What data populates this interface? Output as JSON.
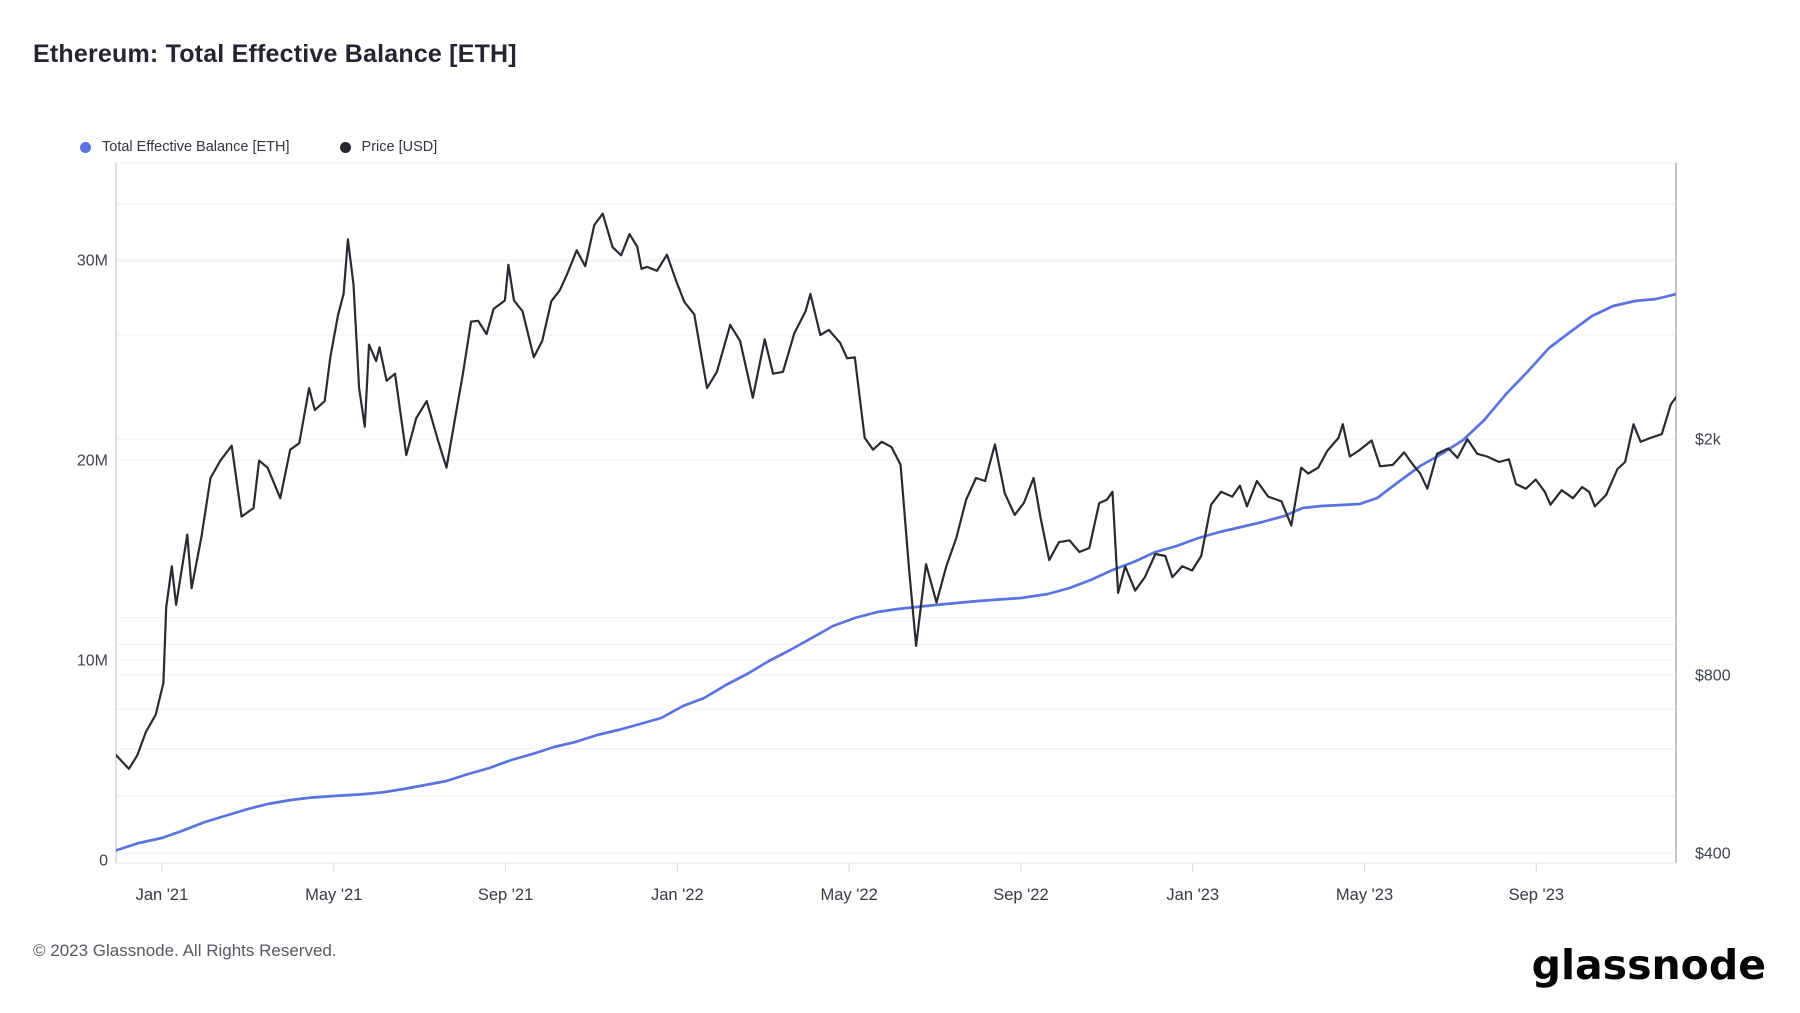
{
  "page": {
    "title": "Ethereum: Total Effective Balance [ETH]"
  },
  "legend": [
    {
      "label": "Total Effective Balance [ETH]",
      "color": "#5a73e0"
    },
    {
      "label": "Price [USD]",
      "color": "#26272c"
    }
  ],
  "footer": {
    "copyright": "© 2023 Glassnode. All Rights Reserved.",
    "brand": "glassnode"
  },
  "chart_data": {
    "type": "line",
    "title": "Ethereum: Total Effective Balance [ETH]",
    "grid": "horizontal-only",
    "legend_position": "top-left",
    "x_axis": {
      "type": "time",
      "start": "2020-11-28",
      "end": "2023-12-11",
      "ticks": [
        {
          "date": "2021-01-01",
          "label": "Jan '21"
        },
        {
          "date": "2021-05-01",
          "label": "May '21"
        },
        {
          "date": "2021-09-01",
          "label": "Sep '21"
        },
        {
          "date": "2022-01-01",
          "label": "Jan '22"
        },
        {
          "date": "2022-05-01",
          "label": "May '22"
        },
        {
          "date": "2022-09-01",
          "label": "Sep '22"
        },
        {
          "date": "2023-01-01",
          "label": "Jan '23"
        },
        {
          "date": "2023-05-01",
          "label": "May '23"
        },
        {
          "date": "2023-09-01",
          "label": "Sep '23"
        }
      ]
    },
    "y_axis_left": {
      "label": "Total Effective Balance [ETH]",
      "scale": "linear",
      "unit": "ETH",
      "range_m_eth": [
        0,
        35
      ],
      "ticks": [
        {
          "value": 0,
          "label": "0"
        },
        {
          "value": 10,
          "label": "10M"
        },
        {
          "value": 20,
          "label": "20M"
        },
        {
          "value": 30,
          "label": "30M"
        }
      ],
      "gridline_values": [
        10,
        20,
        30
      ]
    },
    "y_axis_right": {
      "label": "Price [USD]",
      "scale": "log",
      "unit": "USD",
      "ticks": [
        {
          "value": 400,
          "label": "$400"
        },
        {
          "value": 800,
          "label": "$800"
        },
        {
          "value": 2000,
          "label": "$2k"
        }
      ],
      "gridline_values": [
        400,
        500,
        600,
        700,
        800,
        900,
        1000,
        2000,
        3000,
        4000,
        5000
      ]
    },
    "series": [
      {
        "name": "Total Effective Balance [ETH]",
        "axis": "left",
        "color": "#5a73e0",
        "unit": "M ETH",
        "points": [
          [
            "2020-11-28",
            0.45
          ],
          [
            "2020-12-15",
            0.85
          ],
          [
            "2021-01-01",
            1.1
          ],
          [
            "2021-01-15",
            1.45
          ],
          [
            "2021-02-01",
            1.9
          ],
          [
            "2021-02-15",
            2.2
          ],
          [
            "2021-03-01",
            2.55
          ],
          [
            "2021-03-15",
            2.8
          ],
          [
            "2021-04-01",
            3.0
          ],
          [
            "2021-04-15",
            3.12
          ],
          [
            "2021-05-01",
            3.2
          ],
          [
            "2021-05-20",
            3.28
          ],
          [
            "2021-06-05",
            3.38
          ],
          [
            "2021-06-20",
            3.55
          ],
          [
            "2021-07-05",
            3.75
          ],
          [
            "2021-07-20",
            3.95
          ],
          [
            "2021-08-05",
            4.3
          ],
          [
            "2021-08-20",
            4.6
          ],
          [
            "2021-09-05",
            5.0
          ],
          [
            "2021-09-20",
            5.3
          ],
          [
            "2021-10-05",
            5.65
          ],
          [
            "2021-10-20",
            5.9
          ],
          [
            "2021-11-05",
            6.25
          ],
          [
            "2021-11-20",
            6.5
          ],
          [
            "2021-12-05",
            6.8
          ],
          [
            "2021-12-20",
            7.1
          ],
          [
            "2022-01-05",
            7.7
          ],
          [
            "2022-01-20",
            8.1
          ],
          [
            "2022-02-05",
            8.75
          ],
          [
            "2022-02-20",
            9.3
          ],
          [
            "2022-03-05",
            9.95
          ],
          [
            "2022-03-20",
            10.5
          ],
          [
            "2022-04-05",
            11.1
          ],
          [
            "2022-04-20",
            11.7
          ],
          [
            "2022-05-05",
            12.1
          ],
          [
            "2022-05-21",
            12.4
          ],
          [
            "2022-06-05",
            12.55
          ],
          [
            "2022-07-01",
            12.75
          ],
          [
            "2022-08-01",
            12.95
          ],
          [
            "2022-09-01",
            13.1
          ],
          [
            "2022-09-20",
            13.3
          ],
          [
            "2022-10-05",
            13.6
          ],
          [
            "2022-10-20",
            14.0
          ],
          [
            "2022-11-05",
            14.5
          ],
          [
            "2022-11-20",
            14.9
          ],
          [
            "2022-12-05",
            15.4
          ],
          [
            "2022-12-20",
            15.7
          ],
          [
            "2023-01-05",
            16.1
          ],
          [
            "2023-01-20",
            16.4
          ],
          [
            "2023-02-05",
            16.65
          ],
          [
            "2023-02-20",
            16.9
          ],
          [
            "2023-03-05",
            17.2
          ],
          [
            "2023-03-18",
            17.6
          ],
          [
            "2023-04-01",
            17.7
          ],
          [
            "2023-04-28",
            17.8
          ],
          [
            "2023-05-10",
            18.1
          ],
          [
            "2023-05-25",
            18.9
          ],
          [
            "2023-06-10",
            19.7
          ],
          [
            "2023-06-25",
            20.3
          ],
          [
            "2023-07-10",
            21.0
          ],
          [
            "2023-07-25",
            22.0
          ],
          [
            "2023-08-10",
            23.3
          ],
          [
            "2023-08-25",
            24.4
          ],
          [
            "2023-09-10",
            25.6
          ],
          [
            "2023-09-25",
            26.4
          ],
          [
            "2023-10-10",
            27.2
          ],
          [
            "2023-10-25",
            27.7
          ],
          [
            "2023-11-10",
            27.95
          ],
          [
            "2023-11-25",
            28.05
          ],
          [
            "2023-12-09",
            28.3
          ]
        ]
      },
      {
        "name": "Price [USD]",
        "axis": "right",
        "color": "#2a2b31",
        "unit": "USD",
        "points": [
          [
            "2020-11-28",
            590
          ],
          [
            "2020-12-08",
            555
          ],
          [
            "2020-12-14",
            585
          ],
          [
            "2020-12-20",
            640
          ],
          [
            "2020-12-27",
            685
          ],
          [
            "2021-01-02",
            775
          ],
          [
            "2021-01-04",
            1040
          ],
          [
            "2021-01-08",
            1220
          ],
          [
            "2021-01-11",
            1050
          ],
          [
            "2021-01-19",
            1380
          ],
          [
            "2021-01-22",
            1120
          ],
          [
            "2021-01-29",
            1370
          ],
          [
            "2021-02-05",
            1720
          ],
          [
            "2021-02-12",
            1840
          ],
          [
            "2021-02-20",
            1950
          ],
          [
            "2021-02-27",
            1480
          ],
          [
            "2021-03-05",
            1530
          ],
          [
            "2021-03-09",
            1840
          ],
          [
            "2021-03-15",
            1790
          ],
          [
            "2021-03-24",
            1590
          ],
          [
            "2021-03-31",
            1920
          ],
          [
            "2021-04-07",
            1970
          ],
          [
            "2021-04-14",
            2440
          ],
          [
            "2021-04-18",
            2240
          ],
          [
            "2021-04-25",
            2320
          ],
          [
            "2021-04-29",
            2750
          ],
          [
            "2021-05-04",
            3240
          ],
          [
            "2021-05-08",
            3520
          ],
          [
            "2021-05-11",
            4350
          ],
          [
            "2021-05-15",
            3650
          ],
          [
            "2021-05-19",
            2440
          ],
          [
            "2021-05-23",
            2100
          ],
          [
            "2021-05-26",
            2890
          ],
          [
            "2021-05-31",
            2710
          ],
          [
            "2021-06-03",
            2860
          ],
          [
            "2021-06-08",
            2510
          ],
          [
            "2021-06-14",
            2580
          ],
          [
            "2021-06-22",
            1880
          ],
          [
            "2021-06-29",
            2170
          ],
          [
            "2021-07-06",
            2320
          ],
          [
            "2021-07-14",
            1990
          ],
          [
            "2021-07-20",
            1790
          ],
          [
            "2021-07-27",
            2230
          ],
          [
            "2021-08-01",
            2560
          ],
          [
            "2021-08-07",
            3160
          ],
          [
            "2021-08-12",
            3170
          ],
          [
            "2021-08-18",
            3010
          ],
          [
            "2021-08-23",
            3320
          ],
          [
            "2021-08-31",
            3430
          ],
          [
            "2021-09-03",
            3940
          ],
          [
            "2021-09-07",
            3430
          ],
          [
            "2021-09-13",
            3290
          ],
          [
            "2021-09-21",
            2750
          ],
          [
            "2021-09-27",
            2930
          ],
          [
            "2021-10-03",
            3420
          ],
          [
            "2021-10-09",
            3570
          ],
          [
            "2021-10-14",
            3790
          ],
          [
            "2021-10-21",
            4170
          ],
          [
            "2021-10-27",
            3920
          ],
          [
            "2021-11-03",
            4600
          ],
          [
            "2021-11-09",
            4810
          ],
          [
            "2021-11-16",
            4220
          ],
          [
            "2021-11-22",
            4090
          ],
          [
            "2021-11-28",
            4440
          ],
          [
            "2021-12-03",
            4230
          ],
          [
            "2021-12-06",
            3880
          ],
          [
            "2021-12-10",
            3910
          ],
          [
            "2021-12-17",
            3850
          ],
          [
            "2021-12-24",
            4100
          ],
          [
            "2021-12-31",
            3680
          ],
          [
            "2022-01-06",
            3410
          ],
          [
            "2022-01-13",
            3250
          ],
          [
            "2022-01-22",
            2440
          ],
          [
            "2022-01-29",
            2600
          ],
          [
            "2022-02-08",
            3120
          ],
          [
            "2022-02-15",
            2930
          ],
          [
            "2022-02-24",
            2350
          ],
          [
            "2022-03-02",
            2950
          ],
          [
            "2022-03-08",
            2580
          ],
          [
            "2022-03-15",
            2600
          ],
          [
            "2022-03-23",
            3020
          ],
          [
            "2022-03-31",
            3290
          ],
          [
            "2022-04-04",
            3520
          ],
          [
            "2022-04-11",
            3000
          ],
          [
            "2022-04-17",
            3060
          ],
          [
            "2022-04-25",
            2910
          ],
          [
            "2022-04-30",
            2740
          ],
          [
            "2022-05-05",
            2750
          ],
          [
            "2022-05-12",
            2010
          ],
          [
            "2022-05-18",
            1920
          ],
          [
            "2022-05-24",
            1980
          ],
          [
            "2022-05-31",
            1940
          ],
          [
            "2022-06-07",
            1810
          ],
          [
            "2022-06-13",
            1210
          ],
          [
            "2022-06-18",
            895
          ],
          [
            "2022-06-25",
            1230
          ],
          [
            "2022-07-02",
            1060
          ],
          [
            "2022-07-09",
            1220
          ],
          [
            "2022-07-16",
            1360
          ],
          [
            "2022-07-23",
            1580
          ],
          [
            "2022-07-30",
            1720
          ],
          [
            "2022-08-06",
            1700
          ],
          [
            "2022-08-13",
            1960
          ],
          [
            "2022-08-20",
            1620
          ],
          [
            "2022-08-27",
            1490
          ],
          [
            "2022-09-03",
            1560
          ],
          [
            "2022-09-10",
            1720
          ],
          [
            "2022-09-15",
            1470
          ],
          [
            "2022-09-21",
            1250
          ],
          [
            "2022-09-28",
            1340
          ],
          [
            "2022-10-05",
            1350
          ],
          [
            "2022-10-12",
            1290
          ],
          [
            "2022-10-19",
            1310
          ],
          [
            "2022-10-26",
            1560
          ],
          [
            "2022-11-01",
            1580
          ],
          [
            "2022-11-05",
            1630
          ],
          [
            "2022-11-09",
            1100
          ],
          [
            "2022-11-14",
            1220
          ],
          [
            "2022-11-21",
            1110
          ],
          [
            "2022-11-28",
            1170
          ],
          [
            "2022-12-05",
            1280
          ],
          [
            "2022-12-12",
            1270
          ],
          [
            "2022-12-17",
            1170
          ],
          [
            "2022-12-24",
            1220
          ],
          [
            "2022-12-31",
            1200
          ],
          [
            "2023-01-07",
            1270
          ],
          [
            "2023-01-14",
            1550
          ],
          [
            "2023-01-21",
            1630
          ],
          [
            "2023-01-29",
            1600
          ],
          [
            "2023-02-04",
            1670
          ],
          [
            "2023-02-09",
            1540
          ],
          [
            "2023-02-16",
            1700
          ],
          [
            "2023-02-24",
            1600
          ],
          [
            "2023-03-03",
            1570
          ],
          [
            "2023-03-10",
            1430
          ],
          [
            "2023-03-17",
            1790
          ],
          [
            "2023-03-22",
            1750
          ],
          [
            "2023-03-29",
            1790
          ],
          [
            "2023-04-05",
            1910
          ],
          [
            "2023-04-13",
            2010
          ],
          [
            "2023-04-16",
            2120
          ],
          [
            "2023-04-21",
            1870
          ],
          [
            "2023-04-27",
            1910
          ],
          [
            "2023-05-06",
            1990
          ],
          [
            "2023-05-12",
            1800
          ],
          [
            "2023-05-21",
            1810
          ],
          [
            "2023-05-29",
            1900
          ],
          [
            "2023-06-05",
            1810
          ],
          [
            "2023-06-10",
            1750
          ],
          [
            "2023-06-15",
            1650
          ],
          [
            "2023-06-22",
            1890
          ],
          [
            "2023-06-30",
            1930
          ],
          [
            "2023-07-06",
            1860
          ],
          [
            "2023-07-13",
            2000
          ],
          [
            "2023-07-20",
            1890
          ],
          [
            "2023-07-27",
            1870
          ],
          [
            "2023-08-05",
            1830
          ],
          [
            "2023-08-12",
            1850
          ],
          [
            "2023-08-17",
            1680
          ],
          [
            "2023-08-24",
            1650
          ],
          [
            "2023-08-31",
            1710
          ],
          [
            "2023-09-07",
            1630
          ],
          [
            "2023-09-11",
            1550
          ],
          [
            "2023-09-19",
            1640
          ],
          [
            "2023-09-27",
            1590
          ],
          [
            "2023-10-03",
            1660
          ],
          [
            "2023-10-08",
            1630
          ],
          [
            "2023-10-12",
            1540
          ],
          [
            "2023-10-20",
            1610
          ],
          [
            "2023-10-28",
            1780
          ],
          [
            "2023-11-03",
            1830
          ],
          [
            "2023-11-09",
            2120
          ],
          [
            "2023-11-14",
            1980
          ],
          [
            "2023-11-21",
            2010
          ],
          [
            "2023-11-29",
            2040
          ],
          [
            "2023-12-05",
            2290
          ],
          [
            "2023-12-09",
            2360
          ],
          [
            "2023-12-11",
            2240
          ]
        ]
      }
    ]
  }
}
